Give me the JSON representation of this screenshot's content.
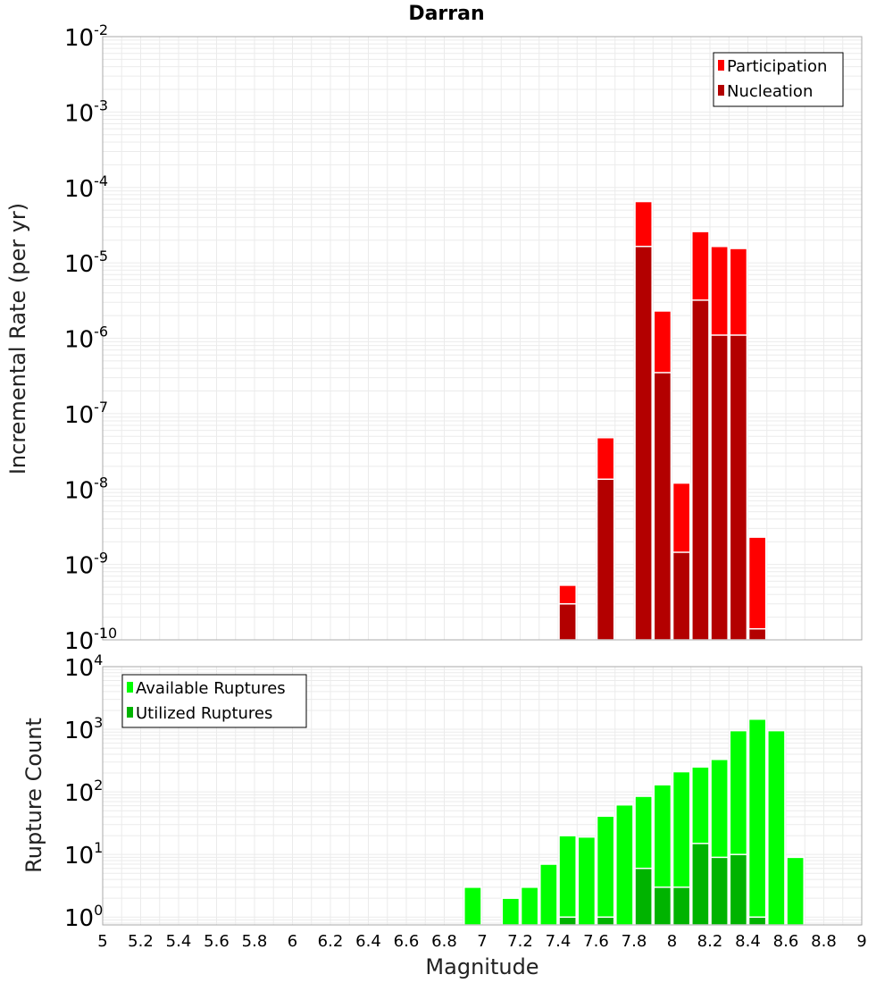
{
  "chart_data": [
    {
      "type": "bar",
      "panel": "top",
      "title": "Darran",
      "ylabel": "Incremental Rate (per yr)",
      "xlabel": "",
      "xlim": [
        5,
        9
      ],
      "ylim": [
        1e-10,
        0.01
      ],
      "yscale": "log",
      "grid": true,
      "legend_position": "top-right",
      "bar_width": 0.09,
      "series": [
        {
          "name": "Participation",
          "color": "#ff0000",
          "points": [
            [
              7.45,
              5.3e-10
            ],
            [
              7.65,
              4.8e-08
            ],
            [
              7.85,
              6.5e-05
            ],
            [
              7.95,
              2.3e-06
            ],
            [
              8.05,
              1.2e-08
            ],
            [
              8.15,
              2.6e-05
            ],
            [
              8.25,
              1.65e-05
            ],
            [
              8.35,
              1.55e-05
            ],
            [
              8.45,
              2.3e-09
            ]
          ]
        },
        {
          "name": "Nucleation",
          "color": "#b30000",
          "points": [
            [
              7.45,
              3e-10
            ],
            [
              7.65,
              1.35e-08
            ],
            [
              7.85,
              1.65e-05
            ],
            [
              7.95,
              3.5e-07
            ],
            [
              8.05,
              1.45e-09
            ],
            [
              8.15,
              3.2e-06
            ],
            [
              8.25,
              1.1e-06
            ],
            [
              8.35,
              1.1e-06
            ],
            [
              8.45,
              1.4e-10
            ]
          ]
        }
      ],
      "yticks": [
        {
          "base": "10",
          "exp": "-2"
        },
        {
          "base": "10",
          "exp": "-3"
        },
        {
          "base": "10",
          "exp": "-4"
        },
        {
          "base": "10",
          "exp": "-5"
        },
        {
          "base": "10",
          "exp": "-6"
        },
        {
          "base": "10",
          "exp": "-7"
        },
        {
          "base": "10",
          "exp": "-8"
        },
        {
          "base": "10",
          "exp": "-9"
        },
        {
          "base": "10",
          "exp": "-10"
        }
      ]
    },
    {
      "type": "bar",
      "panel": "bottom",
      "title": "",
      "ylabel": "Rupture Count",
      "xlabel": "Magnitude",
      "xlim": [
        5,
        9
      ],
      "ylim": [
        0.75,
        10000
      ],
      "yscale": "log",
      "grid": true,
      "legend_position": "top-left",
      "bar_width": 0.09,
      "series": [
        {
          "name": "Available Ruptures",
          "color": "#00ff00",
          "points": [
            [
              6.95,
              3
            ],
            [
              7.15,
              2
            ],
            [
              7.25,
              3
            ],
            [
              7.35,
              7
            ],
            [
              7.45,
              20
            ],
            [
              7.55,
              19
            ],
            [
              7.65,
              41
            ],
            [
              7.75,
              62
            ],
            [
              7.85,
              85
            ],
            [
              7.95,
              130
            ],
            [
              8.05,
              210
            ],
            [
              8.15,
              250
            ],
            [
              8.25,
              330
            ],
            [
              8.35,
              950
            ],
            [
              8.45,
              1450
            ],
            [
              8.55,
              950
            ],
            [
              8.65,
              9
            ]
          ]
        },
        {
          "name": "Utilized Ruptures",
          "color": "#00b300",
          "points": [
            [
              7.45,
              1
            ],
            [
              7.65,
              1
            ],
            [
              7.85,
              6
            ],
            [
              7.95,
              3
            ],
            [
              8.05,
              3
            ],
            [
              8.15,
              15
            ],
            [
              8.25,
              9
            ],
            [
              8.35,
              10
            ],
            [
              8.45,
              1
            ]
          ]
        }
      ],
      "yticks": [
        {
          "base": "10",
          "exp": "4",
          "value": 10000
        },
        {
          "base": "10",
          "exp": "3",
          "value": 1000
        },
        {
          "base": "10",
          "exp": "2",
          "value": 100
        },
        {
          "base": "10",
          "exp": "1",
          "value": 10
        },
        {
          "base": "10",
          "exp": "0",
          "value": 1
        }
      ],
      "xticks": [
        "5",
        "5.2",
        "5.4",
        "5.6",
        "5.8",
        "6",
        "6.2",
        "6.4",
        "6.6",
        "6.8",
        "7",
        "7.2",
        "7.4",
        "7.6",
        "7.8",
        "8",
        "8.2",
        "8.4",
        "8.6",
        "8.8",
        "9"
      ]
    }
  ],
  "colors": {
    "grid": "#ebebeb",
    "frame": "#aaaaaa",
    "bar_outline": "#ffffff"
  }
}
